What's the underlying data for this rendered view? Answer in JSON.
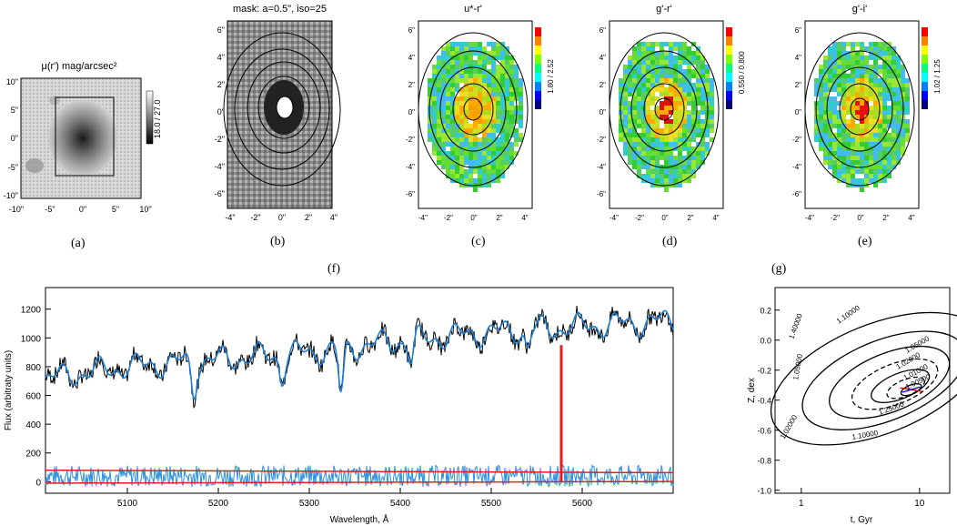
{
  "panels": {
    "a": {
      "title": "μ(r') mag/arcsec²",
      "colorbar_label": "18.0 / 27.0",
      "xticks": [
        "-10\"",
        "-5\"",
        "0\"",
        "5\"",
        "10\""
      ],
      "yticks": [
        "10\"",
        "5\"",
        "0\"",
        "-5\"",
        "-10\""
      ],
      "caption": "(a)"
    },
    "b": {
      "title": "mask: a=0.5\", iso=25",
      "caption": "(b)"
    },
    "c": {
      "title": "u*-r'",
      "colorbar_label": "1.80 / 2.52",
      "caption": "(c)"
    },
    "d": {
      "title": "g'-r'",
      "colorbar_label": "0.550 / 0.800",
      "caption": "(d)"
    },
    "e": {
      "title": "g'-i'",
      "colorbar_label": "1.02 / 1.25",
      "caption": "(e)"
    },
    "map_xticks": [
      "-4\"",
      "-2\"",
      "0\"",
      "2\"",
      "4\""
    ],
    "map_yticks": [
      "6\"",
      "4\"",
      "2\"",
      "0\"",
      "-2\"",
      "-4\"",
      "-6\""
    ],
    "f_caption": "(f)",
    "g_caption": "(g)"
  },
  "colors": {
    "spectrum": "#000000",
    "model": "#1e7fd6",
    "residual": "#2a8fe0",
    "mask": "#e02020"
  },
  "chart_data": [
    {
      "type": "line",
      "title": "",
      "xlabel": "Wavelength, Å",
      "ylabel": "Flux (arbitraty units)",
      "xlim": [
        5010,
        5700
      ],
      "ylim": [
        -80,
        1350
      ],
      "xticks": [
        5100,
        5200,
        5300,
        5400,
        5500,
        5600
      ],
      "yticks": [
        0,
        200,
        400,
        600,
        800,
        1000,
        1200
      ],
      "continuum_anchors": {
        "x": [
          5010,
          5100,
          5200,
          5300,
          5400,
          5500,
          5600,
          5700
        ],
        "y": [
          720,
          800,
          850,
          900,
          980,
          1040,
          1080,
          1120
        ]
      },
      "absorption_features": [
        {
          "x": 5173,
          "depth": 200
        },
        {
          "x": 5270,
          "depth": 150
        },
        {
          "x": 5335,
          "depth": 330
        },
        {
          "x": 5412,
          "depth": 150
        },
        {
          "x": 5540,
          "depth": 120
        }
      ],
      "sky_line": {
        "x": 5577,
        "height": 950
      }
    },
    {
      "type": "line",
      "title": "",
      "xlabel": "t, Gyr",
      "ylabel": "Z, dex",
      "xscale": "log",
      "xlim": [
        0.6,
        18
      ],
      "ylim": [
        -1.02,
        0.35
      ],
      "xticks": [
        1,
        10
      ],
      "yticks": [
        0.2,
        0.0,
        -0.2,
        -0.4,
        -0.6,
        -0.8,
        -1.0
      ],
      "contour_labels": [
        "1.10000",
        "1.05000",
        "1.02000",
        "1.01000",
        "1.00500",
        "1.25000",
        "1.40000",
        "1.05000",
        "1.02000",
        "1.10000"
      ],
      "best_fit": {
        "t": 8.5,
        "z": -0.33
      }
    }
  ]
}
